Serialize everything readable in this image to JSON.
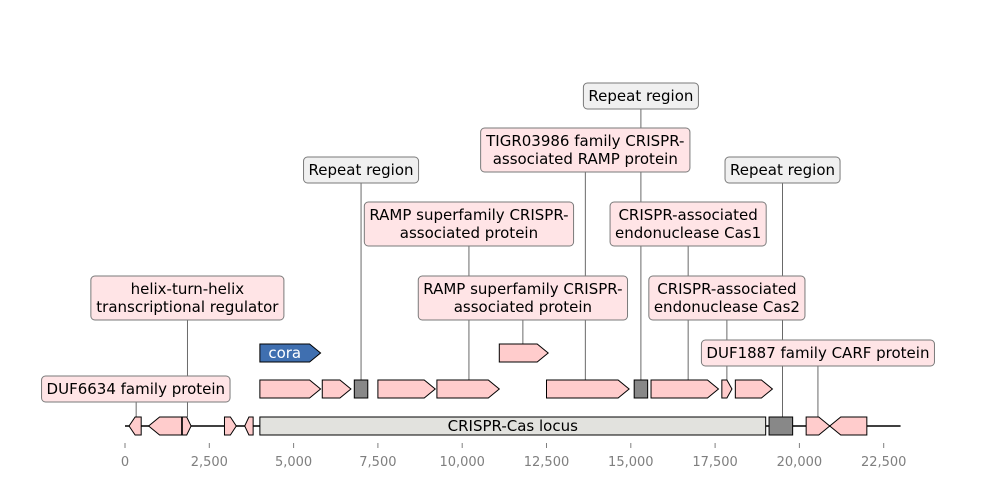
{
  "axis": {
    "ticks": [
      {
        "value": 0,
        "label": "0"
      },
      {
        "value": 2500,
        "label": "2,500"
      },
      {
        "value": 5000,
        "label": "5,000"
      },
      {
        "value": 7500,
        "label": "7,500"
      },
      {
        "value": 10000,
        "label": "10,000"
      },
      {
        "value": 12500,
        "label": "12,500"
      },
      {
        "value": 15000,
        "label": "15,000"
      },
      {
        "value": 17500,
        "label": "17,500"
      },
      {
        "value": 20000,
        "label": "20,000"
      },
      {
        "value": 22500,
        "label": "22,500"
      }
    ],
    "range": [
      0,
      23000
    ]
  },
  "colors": {
    "gene": "#ffcccc",
    "repeat": "#888888",
    "locus": "#e2e2de",
    "cora": "#3f6fb0",
    "label_bg": "#ffe4e6",
    "label_bg_repeat": "#f0f0f0"
  },
  "locus": {
    "start": 4000,
    "end": 19000,
    "label": "CRISPR-Cas locus"
  },
  "features": [
    {
      "id": "f1",
      "start": 120,
      "end": 480,
      "strand": -1,
      "track": 0,
      "kind": "gene"
    },
    {
      "id": "f2",
      "start": 700,
      "end": 1680,
      "strand": -1,
      "track": 0,
      "kind": "gene"
    },
    {
      "id": "f3",
      "start": 1700,
      "end": 1960,
      "strand": 1,
      "track": 0,
      "kind": "gene"
    },
    {
      "id": "f4",
      "start": 2950,
      "end": 3300,
      "strand": 1,
      "track": 0,
      "kind": "gene"
    },
    {
      "id": "f5",
      "start": 3550,
      "end": 3800,
      "strand": -1,
      "track": 0,
      "kind": "gene"
    },
    {
      "id": "f6",
      "start": 19100,
      "end": 19800,
      "strand": 0,
      "track": 0,
      "kind": "repeat"
    },
    {
      "id": "f7",
      "start": 20200,
      "end": 20900,
      "strand": 1,
      "track": 0,
      "kind": "gene"
    },
    {
      "id": "f8",
      "start": 20900,
      "end": 22000,
      "strand": -1,
      "track": 0,
      "kind": "gene"
    },
    {
      "id": "f9",
      "start": 4000,
      "end": 5800,
      "strand": 1,
      "track": 1,
      "kind": "gene"
    },
    {
      "id": "f10",
      "start": 5850,
      "end": 6700,
      "strand": 1,
      "track": 1,
      "kind": "gene"
    },
    {
      "id": "f11",
      "start": 6800,
      "end": 7200,
      "strand": 0,
      "track": 1,
      "kind": "repeat"
    },
    {
      "id": "f12",
      "start": 7500,
      "end": 9200,
      "strand": 1,
      "track": 1,
      "kind": "gene"
    },
    {
      "id": "f13",
      "start": 9250,
      "end": 11100,
      "strand": 1,
      "track": 1,
      "kind": "gene"
    },
    {
      "id": "f14",
      "start": 12500,
      "end": 14950,
      "strand": 1,
      "track": 1,
      "kind": "gene"
    },
    {
      "id": "f15",
      "start": 15100,
      "end": 15500,
      "strand": 0,
      "track": 1,
      "kind": "repeat"
    },
    {
      "id": "f16",
      "start": 15600,
      "end": 17600,
      "strand": 1,
      "track": 1,
      "kind": "gene"
    },
    {
      "id": "f17",
      "start": 17700,
      "end": 18000,
      "strand": 1,
      "track": 1,
      "kind": "gene"
    },
    {
      "id": "f18",
      "start": 18100,
      "end": 19200,
      "strand": 1,
      "track": 1,
      "kind": "gene"
    },
    {
      "id": "f19",
      "start": 4000,
      "end": 5800,
      "strand": 1,
      "track": 2,
      "kind": "cora",
      "text": "cora"
    },
    {
      "id": "f20",
      "start": 11100,
      "end": 12550,
      "strand": 1,
      "track": 2,
      "kind": "gene"
    }
  ],
  "labels": [
    {
      "text": [
        "DUF6634 family protein"
      ],
      "anchor": 330,
      "feature_track": 0,
      "level": 0,
      "center": 320,
      "repeat": false
    },
    {
      "text": [
        "helix-turn-helix",
        "transcriptional regulator"
      ],
      "anchor": 1850,
      "feature_track": 0,
      "level": 2,
      "center": 1850,
      "repeat": false
    },
    {
      "text": [
        "Repeat region"
      ],
      "anchor": 7000,
      "feature_track": 1,
      "level": 6,
      "center": 7000,
      "repeat": true
    },
    {
      "text": [
        "RAMP superfamily CRISPR-",
        "associated protein"
      ],
      "anchor": 10200,
      "feature_track": 1,
      "level": 4,
      "center": 10200,
      "repeat": false
    },
    {
      "text": [
        "RAMP superfamily CRISPR-",
        "associated protein"
      ],
      "anchor": 11800,
      "feature_track": 2,
      "level": 2,
      "center": 11800,
      "repeat": false
    },
    {
      "text": [
        "TIGR03986 family CRISPR-",
        "associated RAMP protein"
      ],
      "anchor": 13650,
      "feature_track": 1,
      "level": 5,
      "center": 13650,
      "repeat": false
    },
    {
      "text": [
        "Repeat region"
      ],
      "anchor": 15300,
      "feature_track": 1,
      "level": 7,
      "center": 15300,
      "repeat": true
    },
    {
      "text": [
        "CRISPR-associated",
        "endonuclease Cas1"
      ],
      "anchor": 16700,
      "feature_track": 1,
      "level": 3,
      "center": 16700,
      "repeat": false
    },
    {
      "text": [
        "CRISPR-associated",
        "endonuclease Cas2"
      ],
      "anchor": 17850,
      "feature_track": 1,
      "level": 2,
      "center": 17850,
      "repeat": false
    },
    {
      "text": [
        "Repeat region"
      ],
      "anchor": 19500,
      "feature_track": 0,
      "level": 6,
      "center": 19500,
      "repeat": true
    },
    {
      "text": [
        "DUF1887 family CARF protein"
      ],
      "anchor": 20550,
      "feature_track": 0,
      "level": 1,
      "center": 20550,
      "repeat": false
    }
  ]
}
